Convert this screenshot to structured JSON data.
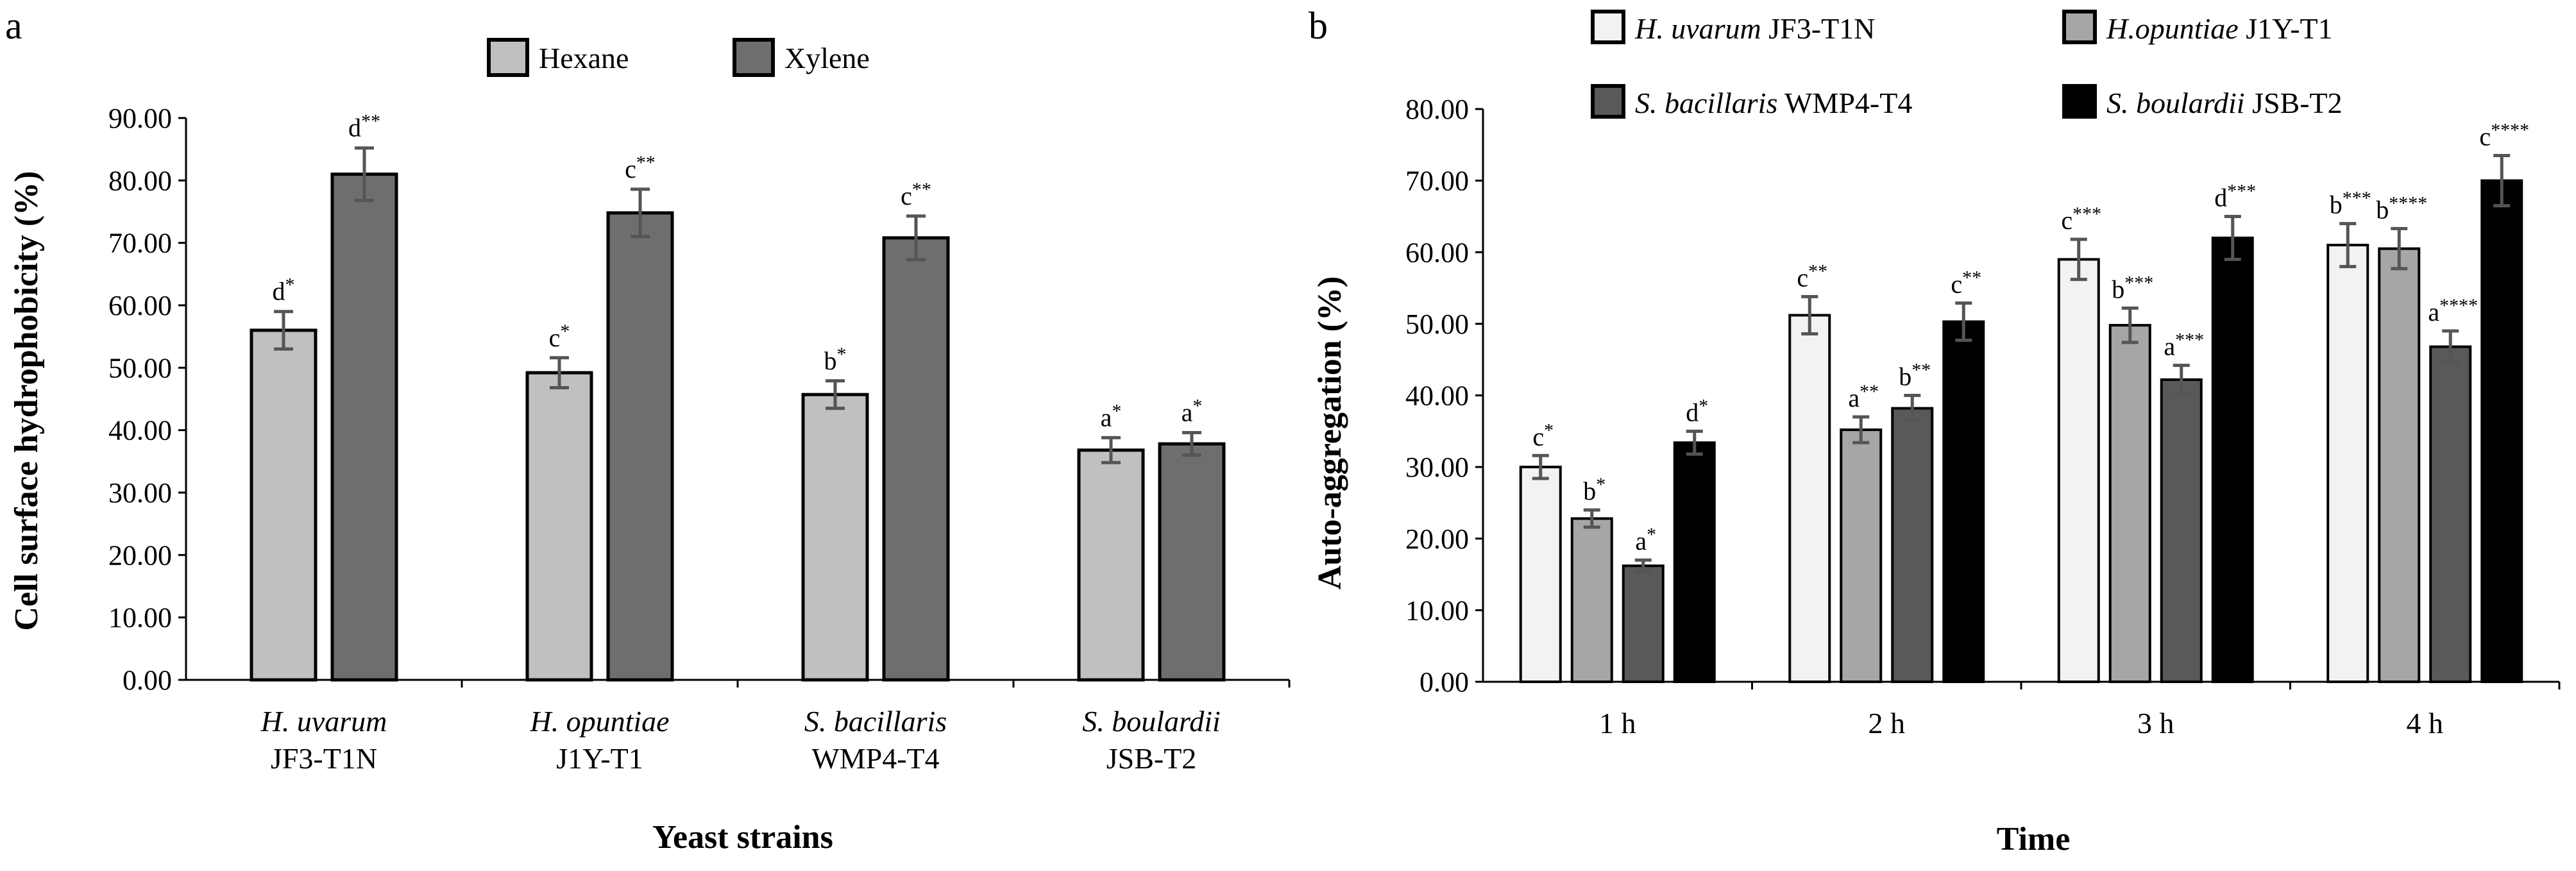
{
  "figure": {
    "panel_a_label": "a",
    "panel_b_label": "b"
  },
  "chart_data": [
    {
      "type": "bar",
      "panel": "a",
      "ylabel": "Cell surface hydrophobicity (%)",
      "xlabel": "Yeast strains",
      "ylim": [
        0,
        90
      ],
      "yticks": [
        "0.00",
        "10.00",
        "20.00",
        "30.00",
        "40.00",
        "50.00",
        "60.00",
        "70.00",
        "80.00",
        "90.00"
      ],
      "legend_position": "top-center",
      "categories": [
        {
          "species": "H. uvarum",
          "strain": "JF3-T1N"
        },
        {
          "species": "H. opuntiae",
          "strain": "J1Y-T1"
        },
        {
          "species": "S. bacillaris",
          "strain": "WMP4-T4"
        },
        {
          "species": "S. boulardii",
          "strain": "JSB-T2"
        }
      ],
      "series": [
        {
          "name": "Hexane",
          "color": "#c0c0c0",
          "values": [
            56.0,
            49.2,
            45.7,
            36.8
          ],
          "errors": [
            3.0,
            2.4,
            2.2,
            2.0
          ],
          "labels": [
            {
              "letter": "d",
              "stars": "*"
            },
            {
              "letter": "c",
              "stars": "*"
            },
            {
              "letter": "b",
              "stars": "*"
            },
            {
              "letter": "a",
              "stars": "*"
            }
          ]
        },
        {
          "name": "Xylene",
          "color": "#6e6e6e",
          "values": [
            81.0,
            74.8,
            70.8,
            37.8
          ],
          "errors": [
            4.2,
            3.8,
            3.5,
            1.8
          ],
          "labels": [
            {
              "letter": "d",
              "stars": "**"
            },
            {
              "letter": "c",
              "stars": "**"
            },
            {
              "letter": "c",
              "stars": "**"
            },
            {
              "letter": "a",
              "stars": "*"
            }
          ]
        }
      ]
    },
    {
      "type": "bar",
      "panel": "b",
      "ylabel": "Auto-aggregation (%)",
      "xlabel": "Time",
      "ylim": [
        0,
        80
      ],
      "yticks": [
        "0.00",
        "10.00",
        "20.00",
        "30.00",
        "40.00",
        "50.00",
        "60.00",
        "70.00",
        "80.00"
      ],
      "legend_position": "top",
      "categories": [
        "1 h",
        "2 h",
        "3 h",
        "4 h"
      ],
      "series": [
        {
          "name_italic": "H. uvarum",
          "name_rest": " JF3-T1N",
          "color": "#f2f2f2",
          "values": [
            30.0,
            51.2,
            59.0,
            61.0
          ],
          "errors": [
            1.6,
            2.6,
            2.8,
            3.0
          ],
          "labels": [
            {
              "letter": "c",
              "stars": "*"
            },
            {
              "letter": "c",
              "stars": "**"
            },
            {
              "letter": "c",
              "stars": "***"
            },
            {
              "letter": "b",
              "stars": "***"
            }
          ]
        },
        {
          "name_italic": "H.opuntiae",
          "name_rest": " J1Y-T1",
          "color": "#a6a6a6",
          "values": [
            22.8,
            35.2,
            49.8,
            60.5
          ],
          "errors": [
            1.2,
            1.8,
            2.4,
            2.8
          ],
          "labels": [
            {
              "letter": "b",
              "stars": "*"
            },
            {
              "letter": "a",
              "stars": "**"
            },
            {
              "letter": "b",
              "stars": "***"
            },
            {
              "letter": "b",
              "stars": "****"
            }
          ]
        },
        {
          "name_italic": "S. bacillaris",
          "name_rest": " WMP4-T4",
          "color": "#595959",
          "values": [
            16.2,
            38.2,
            42.2,
            46.8
          ],
          "errors": [
            0.8,
            1.8,
            2.0,
            2.2
          ],
          "labels": [
            {
              "letter": "a",
              "stars": "*"
            },
            {
              "letter": "b",
              "stars": "**"
            },
            {
              "letter": "a",
              "stars": "***"
            },
            {
              "letter": "a",
              "stars": "****"
            }
          ]
        },
        {
          "name_italic": "S. boulardii",
          "name_rest": " JSB-T2",
          "color": "#000000",
          "values": [
            33.4,
            50.3,
            62.0,
            70.0
          ],
          "errors": [
            1.6,
            2.6,
            3.0,
            3.5
          ],
          "labels": [
            {
              "letter": "d",
              "stars": "*"
            },
            {
              "letter": "c",
              "stars": "**"
            },
            {
              "letter": "d",
              "stars": "***"
            },
            {
              "letter": "c",
              "stars": "****"
            }
          ]
        }
      ]
    }
  ]
}
